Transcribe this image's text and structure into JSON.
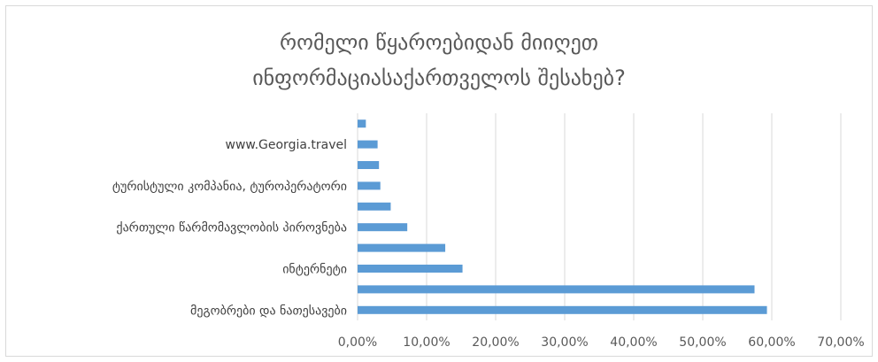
{
  "chart_data": {
    "type": "bar",
    "orientation": "horizontal",
    "title": [
      "რომელი წყაროებიდან მიიღეთ",
      "ინფორმაციასაქართველოს  შესახებ?"
    ],
    "xlabel": "",
    "ylabel": "",
    "xlim": [
      0,
      0.7
    ],
    "x_ticks": [
      "0,00%",
      "10,00%",
      "20,00%",
      "30,00%",
      "40,00%",
      "50,00%",
      "60,00%",
      "70,00%"
    ],
    "categories": [
      "მეგობრები და ნათესავები",
      "",
      "ინტერნეტი",
      "",
      "ქართული წარმომავლობის პიროვნება",
      "",
      "ტურისტული კომპანია, ტუროპერატორი",
      "",
      "www.Georgia.travel",
      ""
    ],
    "values": [
      0.593,
      0.575,
      0.152,
      0.127,
      0.072,
      0.048,
      0.033,
      0.031,
      0.029,
      0.012
    ],
    "grid": true,
    "legend": "none",
    "bar_color": "#5b9bd5"
  }
}
